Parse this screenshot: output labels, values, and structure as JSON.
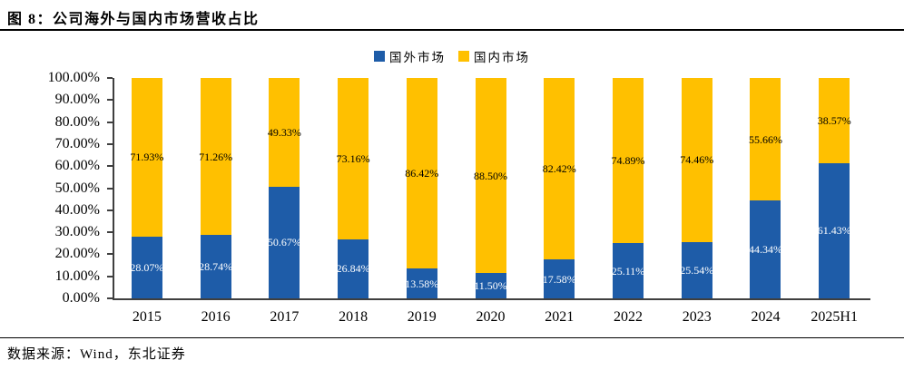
{
  "header": {
    "title": "图 8：公司海外与国内市场营收占比"
  },
  "footer": {
    "source": "数据来源：Wind，东北证券"
  },
  "chart_data": {
    "type": "bar",
    "stacked": true,
    "title": "图 8：公司海外与国内市场营收占比",
    "categories": [
      "2015",
      "2016",
      "2017",
      "2018",
      "2019",
      "2020",
      "2021",
      "2022",
      "2023",
      "2024",
      "2025H1"
    ],
    "series": [
      {
        "name": "国外市场",
        "slug": "overseas-market",
        "color": "#1E5CA8",
        "label_color": "#FFFFFF",
        "values": [
          28.07,
          28.74,
          50.67,
          26.84,
          13.58,
          11.5,
          17.58,
          25.11,
          25.54,
          44.34,
          61.43
        ]
      },
      {
        "name": "国内市场",
        "slug": "domestic-market",
        "color": "#FFC000",
        "label_color": "#000000",
        "values": [
          71.93,
          71.26,
          49.33,
          73.16,
          86.42,
          88.5,
          82.42,
          74.89,
          74.46,
          55.66,
          38.57
        ]
      }
    ],
    "y_axis": {
      "min": 0,
      "max": 100,
      "step": 10,
      "unit": "%",
      "tick_decimals": 2
    },
    "data_label_decimals": 2,
    "legend_position": "top",
    "grid": false,
    "axis_color": "#3f3f3f"
  }
}
